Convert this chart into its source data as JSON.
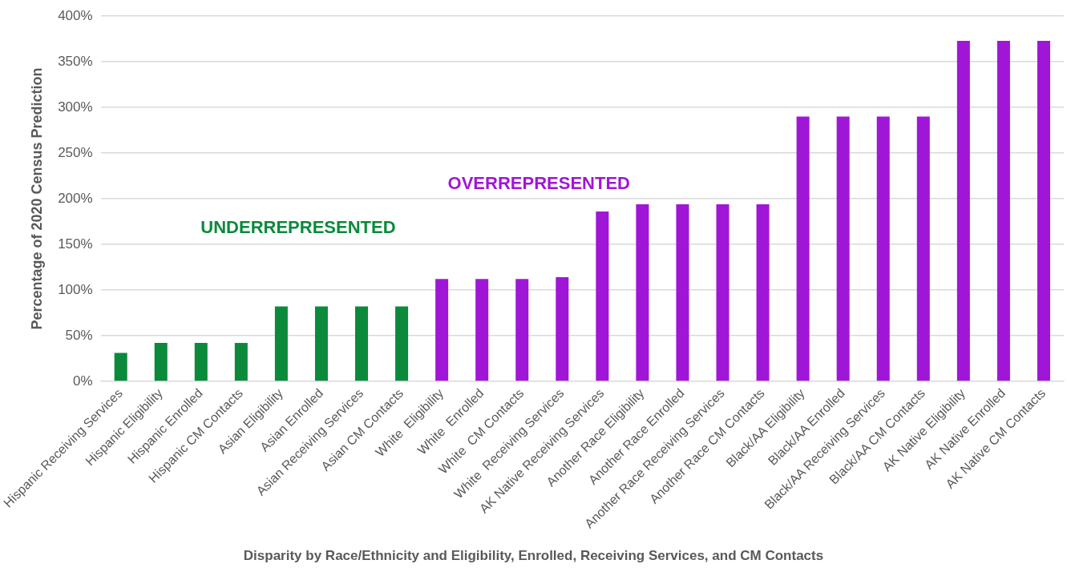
{
  "chart_data": {
    "type": "bar",
    "title": "Disparity by Race/Ethnicity and Eligibility, Enrolled, Receiving Services, and CM Contacts",
    "ylabel": "Percentage of 2020 Census Prediction",
    "categories": [
      "Hispanic Receiving Services",
      "Hispanic Eligibility",
      "Hispanic Enrolled",
      "Hispanic CM Contacts",
      "Asian Eligibility",
      "Asian Enrolled",
      "Asian Receiving Services",
      "Asian CM Contacts",
      "White  Eligibility",
      "White  Enrolled",
      "White  CM Contacts",
      "White  Receiving Services",
      "AK Native Receiving Services",
      "Another Race Eligibility",
      "Another Race Enrolled",
      "Another Race Receiving Services",
      "Another Race CM Contacts",
      "Black/AA Eligibility",
      "Black/AA Enrolled",
      "Black/AA Receiving Services",
      "Black/AA CM Contacts",
      "AK Native Eligibility",
      "AK Native Enrolled",
      "AK Native CM Contacts"
    ],
    "values": [
      31,
      42,
      42,
      42,
      82,
      82,
      82,
      82,
      112,
      112,
      112,
      114,
      186,
      194,
      194,
      194,
      194,
      290,
      290,
      290,
      290,
      373,
      373,
      373
    ],
    "colors": [
      "#0b8a3c",
      "#0b8a3c",
      "#0b8a3c",
      "#0b8a3c",
      "#0b8a3c",
      "#0b8a3c",
      "#0b8a3c",
      "#0b8a3c",
      "#a016d6",
      "#a016d6",
      "#a016d6",
      "#a016d6",
      "#a016d6",
      "#a016d6",
      "#a016d6",
      "#a016d6",
      "#a016d6",
      "#a016d6",
      "#a016d6",
      "#a016d6",
      "#a016d6",
      "#a016d6",
      "#a016d6",
      "#a016d6"
    ],
    "ylim": [
      0,
      400
    ],
    "yticks": [
      {
        "value": 0,
        "label": "0%"
      },
      {
        "value": 50,
        "label": "50%"
      },
      {
        "value": 100,
        "label": "100%"
      },
      {
        "value": 150,
        "label": "150%"
      },
      {
        "value": 200,
        "label": "200%"
      },
      {
        "value": 250,
        "label": "250%"
      },
      {
        "value": 300,
        "label": "300%"
      },
      {
        "value": 350,
        "label": "350%"
      },
      {
        "value": 400,
        "label": "400%"
      }
    ],
    "grid": "y",
    "legend": false,
    "annotations": [
      "UNDERREPRESENTED",
      "OVERREPRESENTED"
    ]
  }
}
